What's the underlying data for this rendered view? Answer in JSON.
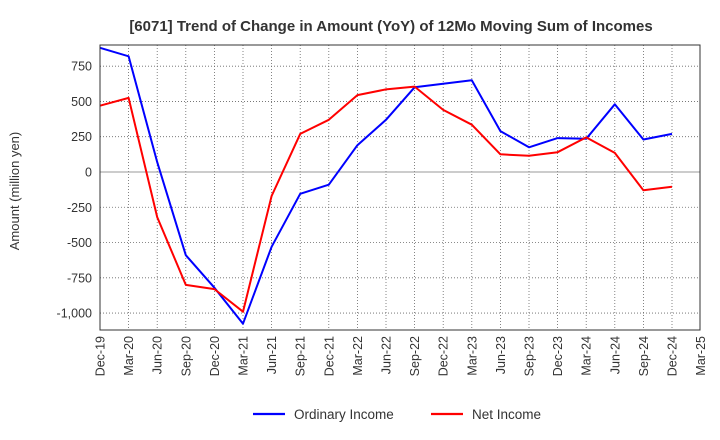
{
  "chart_data": {
    "type": "line",
    "title": "[6071]  Trend of Change in Amount (YoY) of 12Mo Moving Sum of Incomes",
    "xlabel": "",
    "ylabel": "Amount (million yen)",
    "x": [
      "Dec-19",
      "Mar-20",
      "Jun-20",
      "Sep-20",
      "Dec-20",
      "Mar-21",
      "Jun-21",
      "Sep-21",
      "Dec-21",
      "Mar-22",
      "Jun-22",
      "Sep-22",
      "Dec-22",
      "Mar-23",
      "Jun-23",
      "Sep-23",
      "Dec-23",
      "Mar-24",
      "Jun-24",
      "Sep-24",
      "Dec-24",
      "Mar-25"
    ],
    "yticks": [
      750,
      500,
      250,
      0,
      -250,
      -500,
      -750,
      -1000
    ],
    "yticklabels": [
      "750",
      "500",
      "250",
      "0",
      "-250",
      "-500",
      "-750",
      "-1,000"
    ],
    "ylim": [
      -1120,
      900
    ],
    "grid": true,
    "legend_position": "bottom",
    "series": [
      {
        "name": "Ordinary Income",
        "color": "#0000ff",
        "values": [
          880,
          820,
          70,
          -590,
          -820,
          -1075,
          -530,
          -155,
          -90,
          190,
          370,
          600,
          625,
          650,
          290,
          175,
          240,
          235,
          480,
          230,
          270,
          null
        ]
      },
      {
        "name": "Net Income",
        "color": "#ff0000",
        "values": [
          470,
          525,
          -320,
          -800,
          -830,
          -990,
          -170,
          270,
          370,
          545,
          585,
          605,
          440,
          335,
          125,
          115,
          140,
          245,
          135,
          -130,
          -105,
          null
        ]
      }
    ]
  }
}
